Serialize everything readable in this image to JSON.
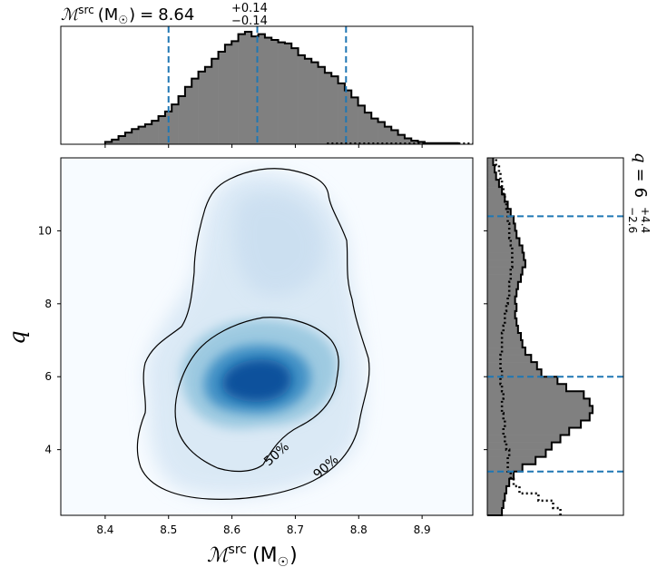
{
  "chart_data": [
    {
      "type": "histogram",
      "panel": "top-marginal",
      "title_parts": {
        "symbol": "ℳ",
        "superscript": "src",
        "unit": "(M",
        "unit_sub": "☉",
        "unit_close": ")",
        "eq": "=",
        "median": "8.64",
        "plus": "+0.14",
        "minus": "−0.14"
      },
      "xlim": [
        8.33,
        8.98
      ],
      "bin_edges_start": 8.4,
      "bin_width": 0.0105,
      "values": [
        2,
        4,
        7,
        10,
        13,
        15,
        17,
        20,
        24,
        28,
        34,
        41,
        49,
        56,
        62,
        66,
        73,
        79,
        85,
        88,
        94,
        96,
        92,
        94,
        91,
        89,
        87,
        86,
        82,
        76,
        73,
        70,
        66,
        61,
        58,
        52,
        46,
        40,
        33,
        27,
        22,
        19,
        15,
        12,
        8,
        5,
        3,
        2,
        1,
        1,
        1,
        1,
        1
      ],
      "prior_dotted": true,
      "quantile_lines": [
        8.5,
        8.64,
        8.78
      ],
      "quantile_color": "#1f77b4"
    },
    {
      "type": "density-heatmap",
      "panel": "joint",
      "xlabel_parts": {
        "symbol": "ℳ",
        "superscript": "src",
        "unit": "(M",
        "unit_sub": "☉",
        "unit_close": ")"
      },
      "ylabel": "q",
      "xlim": [
        8.33,
        8.98
      ],
      "ylim": [
        2.2,
        12.0
      ],
      "xticks": [
        "8.4",
        "8.5",
        "8.6",
        "8.7",
        "8.8",
        "8.9"
      ],
      "yticks": [
        "4",
        "6",
        "8",
        "10"
      ],
      "colormap": "Blues",
      "contours": [
        {
          "label": "50%"
        },
        {
          "label": "90%"
        }
      ]
    },
    {
      "type": "histogram",
      "panel": "right-marginal",
      "orientation": "horizontal",
      "side_label_parts": {
        "symbol": "q",
        "eq": "=",
        "median": "6",
        "plus": "+4.4",
        "minus": "−2.6"
      },
      "ylim": [
        2.2,
        12.0
      ],
      "bin_edges_start": 2.2,
      "bin_width": 0.2,
      "values": [
        10,
        11,
        12,
        13,
        15,
        18,
        24,
        33,
        40,
        44,
        50,
        56,
        64,
        70,
        72,
        70,
        66,
        54,
        48,
        37,
        34,
        30,
        26,
        24,
        23,
        21,
        20,
        19,
        20,
        19,
        20,
        21,
        23,
        24,
        26,
        25,
        24,
        22,
        20,
        19,
        18,
        16,
        14,
        12,
        10,
        8,
        6,
        5,
        4
      ],
      "prior_values": [
        50,
        45,
        35,
        22,
        18,
        16,
        14,
        14,
        15,
        13,
        12,
        11,
        12,
        11,
        10,
        10,
        11,
        10,
        9,
        10,
        9,
        9,
        10,
        10,
        10,
        11,
        12,
        12,
        13,
        14,
        15,
        15,
        16,
        16,
        17,
        17,
        17,
        16,
        15,
        15,
        14,
        14,
        13,
        12,
        11,
        10,
        9,
        8,
        6
      ],
      "quantile_lines": [
        3.4,
        6.0,
        10.4
      ],
      "quantile_color": "#1f77b4"
    }
  ]
}
